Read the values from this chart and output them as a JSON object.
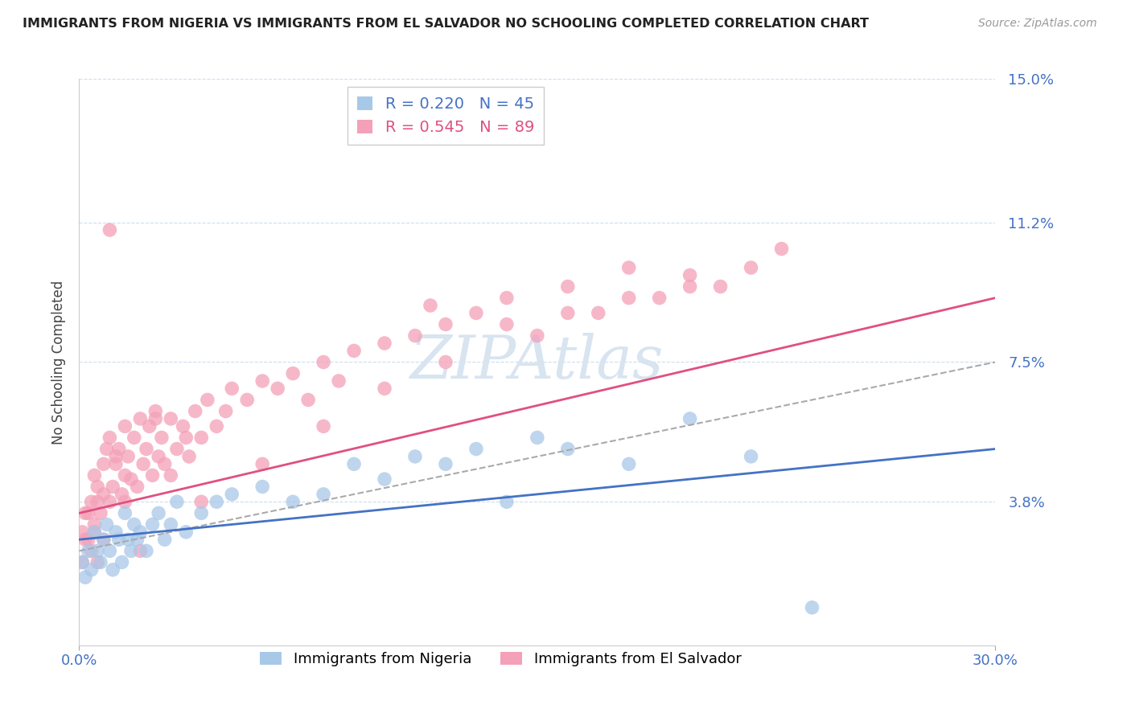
{
  "title": "IMMIGRANTS FROM NIGERIA VS IMMIGRANTS FROM EL SALVADOR NO SCHOOLING COMPLETED CORRELATION CHART",
  "source": "Source: ZipAtlas.com",
  "ylabel": "No Schooling Completed",
  "xlim": [
    0.0,
    0.3
  ],
  "ylim": [
    0.0,
    0.15
  ],
  "xtick_vals": [
    0.0,
    0.3
  ],
  "xtick_labels": [
    "0.0%",
    "30.0%"
  ],
  "ytick_vals": [
    0.038,
    0.075,
    0.112,
    0.15
  ],
  "ytick_labels": [
    "3.8%",
    "7.5%",
    "11.2%",
    "15.0%"
  ],
  "legend_r1": "R = 0.220",
  "legend_n1": "N = 45",
  "legend_r2": "R = 0.545",
  "legend_n2": "N = 89",
  "color_nigeria": "#a8c8e8",
  "color_salvador": "#f4a0b8",
  "color_line_nigeria": "#4472c4",
  "color_line_salvador": "#e05080",
  "color_dash": "#aaaaaa",
  "background": "#ffffff",
  "grid_color": "#ccddee",
  "watermark_color": "#d8e4f0",
  "nigeria_trend_x": [
    0.0,
    0.3
  ],
  "nigeria_trend_y": [
    0.028,
    0.052
  ],
  "salvador_trend_x": [
    0.0,
    0.3
  ],
  "salvador_trend_y": [
    0.035,
    0.092
  ],
  "dash_trend_x": [
    0.0,
    0.3
  ],
  "dash_trend_y": [
    0.025,
    0.075
  ],
  "nigeria_x": [
    0.001,
    0.002,
    0.003,
    0.004,
    0.005,
    0.006,
    0.007,
    0.008,
    0.009,
    0.01,
    0.011,
    0.012,
    0.013,
    0.014,
    0.015,
    0.016,
    0.017,
    0.018,
    0.019,
    0.02,
    0.022,
    0.024,
    0.026,
    0.028,
    0.03,
    0.032,
    0.035,
    0.04,
    0.045,
    0.05,
    0.06,
    0.07,
    0.08,
    0.09,
    0.1,
    0.11,
    0.12,
    0.13,
    0.14,
    0.15,
    0.16,
    0.18,
    0.2,
    0.22,
    0.24
  ],
  "nigeria_y": [
    0.022,
    0.018,
    0.025,
    0.02,
    0.03,
    0.025,
    0.022,
    0.028,
    0.032,
    0.025,
    0.02,
    0.03,
    0.028,
    0.022,
    0.035,
    0.028,
    0.025,
    0.032,
    0.028,
    0.03,
    0.025,
    0.032,
    0.035,
    0.028,
    0.032,
    0.038,
    0.03,
    0.035,
    0.038,
    0.04,
    0.042,
    0.038,
    0.04,
    0.048,
    0.044,
    0.05,
    0.048,
    0.052,
    0.038,
    0.055,
    0.052,
    0.048,
    0.06,
    0.05,
    0.01
  ],
  "salvador_x": [
    0.001,
    0.002,
    0.003,
    0.004,
    0.005,
    0.005,
    0.006,
    0.006,
    0.007,
    0.008,
    0.008,
    0.009,
    0.01,
    0.01,
    0.011,
    0.012,
    0.013,
    0.014,
    0.015,
    0.015,
    0.016,
    0.017,
    0.018,
    0.019,
    0.02,
    0.021,
    0.022,
    0.023,
    0.024,
    0.025,
    0.026,
    0.027,
    0.028,
    0.03,
    0.032,
    0.034,
    0.036,
    0.038,
    0.04,
    0.042,
    0.045,
    0.048,
    0.05,
    0.055,
    0.06,
    0.065,
    0.07,
    0.075,
    0.08,
    0.085,
    0.09,
    0.1,
    0.11,
    0.115,
    0.12,
    0.13,
    0.14,
    0.15,
    0.16,
    0.17,
    0.18,
    0.19,
    0.2,
    0.21,
    0.22,
    0.23,
    0.14,
    0.16,
    0.18,
    0.2,
    0.12,
    0.1,
    0.08,
    0.06,
    0.04,
    0.02,
    0.015,
    0.012,
    0.01,
    0.008,
    0.006,
    0.005,
    0.004,
    0.003,
    0.002,
    0.001,
    0.025,
    0.03,
    0.035
  ],
  "salvador_y": [
    0.03,
    0.035,
    0.028,
    0.038,
    0.032,
    0.045,
    0.038,
    0.042,
    0.035,
    0.048,
    0.04,
    0.052,
    0.038,
    0.055,
    0.042,
    0.048,
    0.052,
    0.04,
    0.058,
    0.045,
    0.05,
    0.044,
    0.055,
    0.042,
    0.06,
    0.048,
    0.052,
    0.058,
    0.045,
    0.062,
    0.05,
    0.055,
    0.048,
    0.06,
    0.052,
    0.058,
    0.05,
    0.062,
    0.055,
    0.065,
    0.058,
    0.062,
    0.068,
    0.065,
    0.07,
    0.068,
    0.072,
    0.065,
    0.075,
    0.07,
    0.078,
    0.08,
    0.082,
    0.09,
    0.085,
    0.088,
    0.092,
    0.082,
    0.095,
    0.088,
    0.1,
    0.092,
    0.098,
    0.095,
    0.1,
    0.105,
    0.085,
    0.088,
    0.092,
    0.095,
    0.075,
    0.068,
    0.058,
    0.048,
    0.038,
    0.025,
    0.038,
    0.05,
    0.11,
    0.028,
    0.022,
    0.03,
    0.025,
    0.035,
    0.028,
    0.022,
    0.06,
    0.045,
    0.055
  ]
}
